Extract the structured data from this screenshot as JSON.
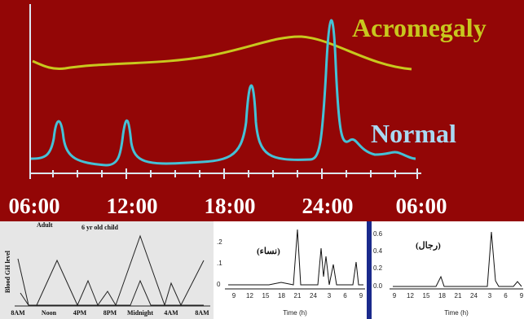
{
  "main": {
    "acromegaly_label": "Acromegaly",
    "normal_label": "Normal",
    "x_labels": [
      "06:00",
      "12:00",
      "18:00",
      "24:00",
      "06:00"
    ]
  },
  "panel_left": {
    "legend_adult": "Adult",
    "legend_child": "6 yr old child",
    "y_label": "Blood GH level",
    "x_labels": [
      "8AM",
      "Noon",
      "4PM",
      "8PM",
      "Midnight",
      "4AM",
      "8AM"
    ]
  },
  "panel_middle": {
    "title": "(نساء)",
    "y_labels": [
      ".2",
      ".1",
      "0"
    ],
    "x_labels": [
      "9",
      "12",
      "15",
      "18",
      "21",
      "24",
      "3",
      "6",
      "9"
    ],
    "x_title": "Time (h)"
  },
  "panel_right": {
    "title": "(رجال)",
    "y_labels": [
      "0.6",
      "0.4",
      "0.2",
      "0.0"
    ],
    "x_labels": [
      "9",
      "12",
      "15",
      "18",
      "21",
      "24",
      "3",
      "6",
      "9"
    ],
    "x_title": "Time (h)"
  }
}
